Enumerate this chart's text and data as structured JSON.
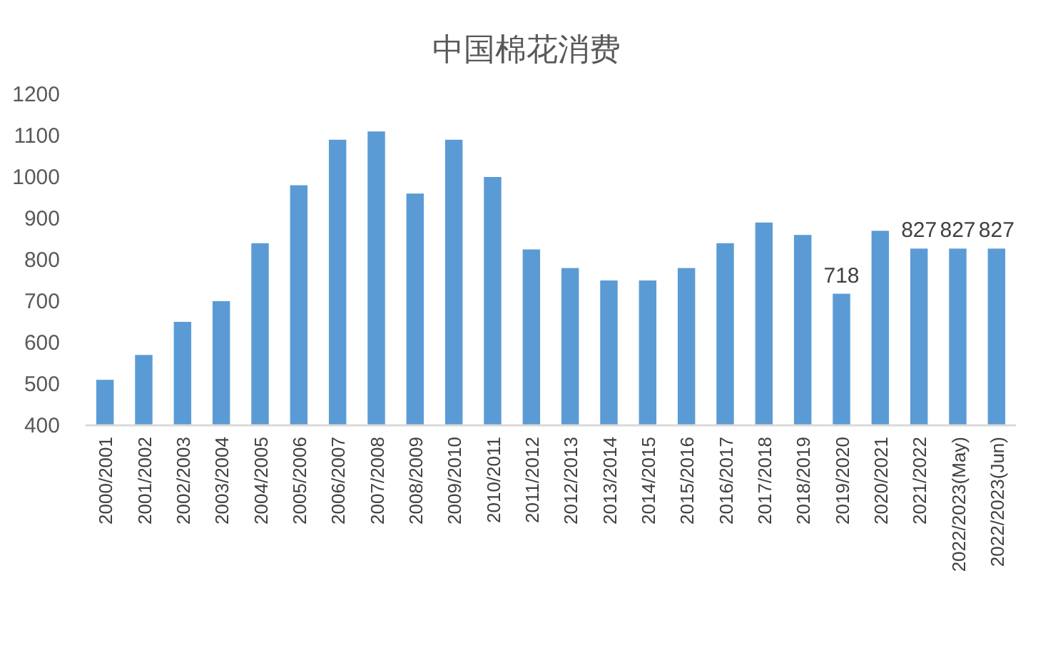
{
  "chart_data": {
    "type": "bar",
    "title": "中国棉花消费",
    "categories": [
      "2000/2001",
      "2001/2002",
      "2002/2003",
      "2003/2004",
      "2004/2005",
      "2005/2006",
      "2006/2007",
      "2007/2008",
      "2008/2009",
      "2009/2010",
      "2010/2011",
      "2011/2012",
      "2012/2013",
      "2013/2014",
      "2014/2015",
      "2015/2016",
      "2016/2017",
      "2017/2018",
      "2018/2019",
      "2019/2020",
      "2020/2021",
      "2021/2022",
      "2022/2023(May)",
      "2022/2023(Jun)"
    ],
    "values": [
      510,
      570,
      650,
      700,
      840,
      980,
      1090,
      1110,
      960,
      1090,
      1000,
      825,
      780,
      750,
      750,
      780,
      840,
      890,
      860,
      718,
      870,
      827,
      827,
      827
    ],
    "value_labels": [
      null,
      null,
      null,
      null,
      null,
      null,
      null,
      null,
      null,
      null,
      null,
      null,
      null,
      null,
      null,
      null,
      null,
      null,
      null,
      "718",
      null,
      "827",
      "827",
      "827"
    ],
    "color": "#5b9bd5",
    "ylim": [
      400,
      1200
    ],
    "yticks": [
      400,
      500,
      600,
      700,
      800,
      900,
      1000,
      1100,
      1200
    ],
    "grid": false
  }
}
